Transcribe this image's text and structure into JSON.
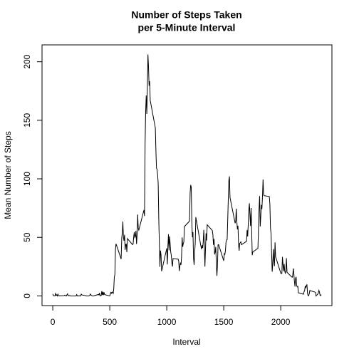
{
  "chart_data": {
    "type": "line",
    "title": [
      "Number of Steps Taken",
      "per 5-Minute Interval"
    ],
    "xlabel": "Interval",
    "ylabel": "Mean Number of Steps",
    "color": "#000000",
    "xlim": [
      -94.2,
      2449.2
    ],
    "ylim": [
      -8.25,
      214.4
    ],
    "xticks": [
      0,
      500,
      1000,
      1500,
      2000
    ],
    "yticks": [
      0,
      50,
      100,
      150,
      200
    ],
    "grid": false,
    "x": [
      0,
      5,
      10,
      15,
      20,
      25,
      30,
      35,
      40,
      45,
      50,
      55,
      100,
      105,
      110,
      115,
      120,
      125,
      130,
      135,
      140,
      145,
      150,
      155,
      200,
      205,
      210,
      215,
      220,
      225,
      230,
      235,
      240,
      245,
      250,
      255,
      300,
      305,
      310,
      315,
      320,
      325,
      330,
      335,
      340,
      345,
      350,
      355,
      400,
      405,
      410,
      415,
      420,
      425,
      430,
      435,
      440,
      445,
      450,
      455,
      500,
      505,
      510,
      515,
      520,
      525,
      530,
      535,
      540,
      545,
      550,
      555,
      600,
      605,
      610,
      615,
      620,
      625,
      630,
      635,
      640,
      645,
      650,
      655,
      700,
      705,
      710,
      715,
      720,
      725,
      730,
      735,
      740,
      745,
      750,
      755,
      800,
      805,
      810,
      815,
      820,
      825,
      830,
      835,
      840,
      845,
      850,
      855,
      900,
      905,
      910,
      915,
      920,
      925,
      930,
      935,
      940,
      945,
      950,
      955,
      1000,
      1005,
      1010,
      1015,
      1020,
      1025,
      1030,
      1035,
      1040,
      1045,
      1050,
      1055,
      1100,
      1105,
      1110,
      1115,
      1120,
      1125,
      1130,
      1135,
      1140,
      1145,
      1150,
      1155,
      1200,
      1205,
      1210,
      1215,
      1220,
      1225,
      1230,
      1235,
      1240,
      1245,
      1250,
      1255,
      1300,
      1305,
      1310,
      1315,
      1320,
      1325,
      1330,
      1335,
      1340,
      1345,
      1350,
      1355,
      1400,
      1405,
      1410,
      1415,
      1420,
      1425,
      1430,
      1435,
      1440,
      1445,
      1450,
      1455,
      1500,
      1505,
      1510,
      1515,
      1520,
      1525,
      1530,
      1535,
      1540,
      1545,
      1550,
      1555,
      1600,
      1605,
      1610,
      1615,
      1620,
      1625,
      1630,
      1635,
      1640,
      1645,
      1650,
      1655,
      1700,
      1705,
      1710,
      1715,
      1720,
      1725,
      1730,
      1735,
      1740,
      1745,
      1750,
      1755,
      1800,
      1805,
      1810,
      1815,
      1820,
      1825,
      1830,
      1835,
      1840,
      1845,
      1850,
      1855,
      1900,
      1905,
      1910,
      1915,
      1920,
      1925,
      1930,
      1935,
      1940,
      1945,
      1950,
      1955,
      2000,
      2005,
      2010,
      2015,
      2020,
      2025,
      2030,
      2035,
      2040,
      2045,
      2050,
      2055,
      2100,
      2105,
      2110,
      2115,
      2120,
      2125,
      2130,
      2135,
      2140,
      2145,
      2150,
      2155,
      2200,
      2205,
      2210,
      2215,
      2220,
      2225,
      2230,
      2235,
      2240,
      2245,
      2250,
      2255,
      2300,
      2305,
      2310,
      2315,
      2320,
      2325,
      2330,
      2335,
      2340,
      2345,
      2350,
      2355
    ],
    "values": [
      1.7,
      0.3,
      0.1,
      0.2,
      0.1,
      2.1,
      0.5,
      0.9,
      0,
      1.5,
      0.3,
      0.1,
      0.3,
      0.7,
      0.2,
      0.3,
      0,
      1.1,
      1.8,
      0.2,
      0.2,
      0.4,
      0.3,
      0,
      0,
      0,
      1.1,
      0,
      0,
      0.1,
      0,
      0.2,
      0,
      0,
      1.5,
      0.9,
      0,
      0,
      0,
      0,
      0.2,
      0.6,
      1.6,
      0.6,
      0.5,
      0.1,
      0,
      0,
      1.2,
      0.9,
      2.6,
      0,
      0.3,
      0.4,
      4.1,
      0.7,
      3.5,
      0.8,
      3.1,
      1.1,
      0,
      1.6,
      3,
      2.2,
      3.3,
      3,
      2.1,
      6.1,
      16,
      18.3,
      39.5,
      44.5,
      31.5,
      49.3,
      53.8,
      63.5,
      50,
      47.1,
      52.2,
      39.3,
      44,
      44.2,
      37.4,
      49,
      43.8,
      44.4,
      50.5,
      54.5,
      49.9,
      50.9,
      55.7,
      44.3,
      52.3,
      69.5,
      57.8,
      56.2,
      73.4,
      68.2,
      129.4,
      157.5,
      171.2,
      155.4,
      177.3,
      206.2,
      195.9,
      179.6,
      183.4,
      167,
      143.5,
      124,
      109.1,
      108.1,
      103.7,
      95.9,
      66.2,
      45.2,
      24.8,
      38.8,
      35,
      21.1,
      40.6,
      27,
      42.4,
      52.7,
      38.9,
      50.8,
      44.3,
      37.4,
      34.7,
      28.3,
      25.1,
      31.9,
      31.4,
      29.7,
      21.3,
      25.5,
      28.4,
      26.5,
      33.4,
      50,
      42,
      44.6,
      46,
      59.2,
      63.9,
      87.7,
      94.8,
      92.8,
      63.4,
      50.2,
      54.5,
      32.4,
      26.5,
      37.7,
      45.1,
      67.3,
      42.3,
      39.9,
      43.3,
      41,
      46.2,
      56.4,
      42.8,
      25.1,
      40,
      53.5,
      47.3,
      60.8,
      55.8,
      52,
      43.6,
      48.7,
      35.5,
      37.5,
      41.8,
      27.5,
      17.1,
      26.1,
      43.6,
      43.8,
      30,
      36.1,
      35.5,
      38.8,
      46,
      47.8,
      48.1,
      65.3,
      82.9,
      98.7,
      102.1,
      84,
      62.1,
      64.1,
      74.5,
      63.2,
      56.9,
      59.8,
      43.9,
      38.6,
      44.7,
      45.5,
      46.2,
      43.7,
      46.6,
      56.3,
      50.7,
      61.2,
      73.4,
      79.1,
      68.9,
      59.7,
      75.1,
      56.5,
      34.8,
      37.5,
      40.7,
      58,
      74.7,
      85.3,
      59.3,
      67.8,
      77.7,
      74.2,
      85.3,
      99.5,
      86.6,
      85.6,
      84.9,
      77.8,
      58,
      53.4,
      36.3,
      20.7,
      27.4,
      40,
      30.2,
      25.5,
      45.7,
      33.5,
      19.6,
      19,
      19.3,
      33.3,
      26.8,
      21.2,
      27.3,
      21.3,
      19.5,
      21.3,
      32.3,
      20.2,
      15.9,
      17.2,
      23.5,
      19.2,
      12.5,
      8,
      14.7,
      16.3,
      8.7,
      7.8,
      8.1,
      2.6,
      1.5,
      3.7,
      4.8,
      8.5,
      7.1,
      8.7,
      9.8,
      2.2,
      0.3,
      0.1,
      1.6,
      4.6,
      3.3,
      2.8,
      0,
      0.8,
      1,
      1.6,
      2.6,
      4.7,
      3.3,
      0.6,
      0.2,
      1.1
    ]
  }
}
